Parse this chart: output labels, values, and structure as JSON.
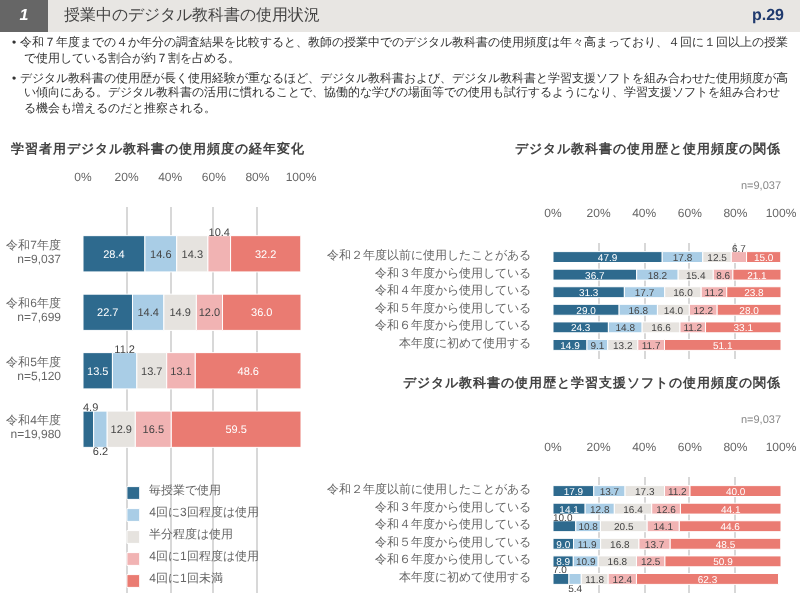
{
  "chart_data": [
    {
      "type": "other",
      "title": "授業中のデジタル教科書の使用状況",
      "annotations": [
        "1",
        "p.29",
        "• 令和７年度までの４か年分の調査結果を比較すると、教師の授業中でのデジタル教科書の使用頻度は年々高まっており、４回に１回以上の授業で使用している割合が約７割を占める。",
        "• デジタル教科書の使用歴が長く使用経験が重なるほど、デジタル教科書および、デジタル教科書と学習支援ソフトを組み合わせた使用頻度が高い傾向にある。デジタル教科書の活用に慣れることで、協働的な学びの場面等での使用も試行するようになり、学習支援ソフトを組み合わせる機会も増えるのだと推察される。"
      ]
    },
    {
      "type": "bar",
      "title": "学習者用デジタル教科書の使用頻度の経年変化",
      "orientation": "horizontal",
      "stacked": true,
      "grid": "x",
      "legend": "bottom",
      "xlim": [
        0,
        100
      ],
      "xticks": [
        {
          "value": 0,
          "label": "0%"
        },
        {
          "value": 20,
          "label": "20%"
        },
        {
          "value": 40,
          "label": "40%"
        },
        {
          "value": 60,
          "label": "60%"
        },
        {
          "value": 80,
          "label": "80%"
        },
        {
          "value": 100,
          "label": "100%"
        }
      ],
      "categories": [
        "令和7年度\nn=9,037",
        "令和6年度\nn=7,699",
        "令和5年度\nn=5,120",
        "令和4年度\nn=19,980"
      ],
      "series": [
        {
          "name": "毎授業で使用",
          "color": "#2e6a8e",
          "values": [
            28.4,
            22.7,
            13.5,
            4.9
          ],
          "value_labels": [
            "28.4",
            "22.7",
            "13.5",
            "4.9"
          ]
        },
        {
          "name": "4回に3回程度は使用",
          "color": "#a9cde6",
          "values": [
            14.6,
            14.4,
            11.2,
            6.2
          ],
          "value_labels": [
            "14.6",
            "14.4",
            "11.2",
            "6.2"
          ]
        },
        {
          "name": "半分程度は使用",
          "color": "#e6e3df",
          "values": [
            14.3,
            14.9,
            13.7,
            12.9
          ],
          "value_labels": [
            "14.3",
            "14.9",
            "13.7",
            "12.9"
          ]
        },
        {
          "name": "4回に1回程度は使用",
          "color": "#f1b3b3",
          "values": [
            10.4,
            12.0,
            13.1,
            16.5
          ],
          "value_labels": [
            "10.4",
            "12.0",
            "13.1",
            "16.5"
          ]
        },
        {
          "name": "4回に1回未満",
          "color": "#ea7b72",
          "values": [
            32.2,
            36.0,
            48.6,
            59.5
          ],
          "value_labels": [
            "32.2",
            "36.0",
            "48.6",
            "59.5"
          ]
        }
      ]
    },
    {
      "type": "bar",
      "title": "デジタル教科書の使用歴と使用頻度の関係",
      "annotations": [
        "n=9,037"
      ],
      "orientation": "horizontal",
      "stacked": true,
      "grid": "x",
      "xlim": [
        0,
        100
      ],
      "xticks": [
        {
          "value": 0,
          "label": "0%"
        },
        {
          "value": 20,
          "label": "20%"
        },
        {
          "value": 40,
          "label": "40%"
        },
        {
          "value": 60,
          "label": "60%"
        },
        {
          "value": 80,
          "label": "80%"
        },
        {
          "value": 100,
          "label": "100%"
        }
      ],
      "categories": [
        "令和２年度以前に使用したことがある",
        "令和３年度から使用している",
        "令和４年度から使用している",
        "令和５年度から使用している",
        "令和６年度から使用している",
        "本年度に初めて使用する"
      ],
      "series": [
        {
          "color": "#2e6a8e",
          "values": [
            47.9,
            36.7,
            31.3,
            29.0,
            24.3,
            14.9
          ],
          "value_labels": [
            "47.9",
            "36.7",
            "31.3",
            "29.0",
            "24.3",
            "14.9"
          ]
        },
        {
          "color": "#a9cde6",
          "values": [
            17.8,
            18.2,
            17.7,
            16.8,
            14.8,
            9.1
          ],
          "value_labels": [
            "17.8",
            "18.2",
            "17.7",
            "16.8",
            "14.8",
            "9.1"
          ]
        },
        {
          "color": "#e6e3df",
          "values": [
            12.5,
            15.4,
            16.0,
            14.0,
            16.6,
            13.2
          ],
          "value_labels": [
            "12.5",
            "15.4",
            "16.0",
            "14.0",
            "16.6",
            "13.2"
          ]
        },
        {
          "color": "#f1b3b3",
          "values": [
            6.7,
            8.6,
            11.2,
            12.2,
            11.2,
            11.7
          ],
          "value_labels": [
            "6.7",
            "8.6",
            "11.2",
            "12.2",
            "11.2",
            "11.7"
          ]
        },
        {
          "color": "#ea7b72",
          "values": [
            15.0,
            21.1,
            23.8,
            28.0,
            33.1,
            51.1
          ],
          "value_labels": [
            "15.0",
            "21.1",
            "23.8",
            "28.0",
            "33.1",
            "51.1"
          ]
        }
      ]
    },
    {
      "type": "bar",
      "title": "デジタル教科書の使用歴と学習支援ソフトの使用頻度の関係",
      "annotations": [
        "n=9,037"
      ],
      "orientation": "horizontal",
      "stacked": true,
      "grid": "x",
      "xlim": [
        0,
        100
      ],
      "xticks": [
        {
          "value": 0,
          "label": "0%"
        },
        {
          "value": 20,
          "label": "20%"
        },
        {
          "value": 40,
          "label": "40%"
        },
        {
          "value": 60,
          "label": "60%"
        },
        {
          "value": 80,
          "label": "80%"
        },
        {
          "value": 100,
          "label": "100%"
        }
      ],
      "categories": [
        "令和２年度以前に使用したことがある",
        "令和３年度から使用している",
        "令和４年度から使用している",
        "令和５年度から使用している",
        "令和６年度から使用している",
        "本年度に初めて使用する"
      ],
      "series": [
        {
          "color": "#2e6a8e",
          "values": [
            17.9,
            14.1,
            10.0,
            9.0,
            8.9,
            7.0
          ],
          "value_labels": [
            "17.9",
            "14.1",
            "10.0",
            "9.0",
            "8.9",
            "7.0"
          ]
        },
        {
          "color": "#a9cde6",
          "values": [
            13.7,
            12.8,
            10.8,
            11.9,
            10.9,
            5.4
          ],
          "value_labels": [
            "13.7",
            "12.8",
            "10.8",
            "11.9",
            "10.9",
            "5.4"
          ]
        },
        {
          "color": "#e6e3df",
          "values": [
            17.3,
            16.4,
            20.5,
            16.8,
            16.8,
            11.8
          ],
          "value_labels": [
            "17.3",
            "16.4",
            "20.5",
            "16.8",
            "16.8",
            "11.8"
          ]
        },
        {
          "color": "#f1b3b3",
          "values": [
            11.2,
            12.6,
            14.1,
            13.7,
            12.5,
            12.4
          ],
          "value_labels": [
            "11.2",
            "12.6",
            "14.1",
            "13.7",
            "12.5",
            "12.4"
          ]
        },
        {
          "color": "#ea7b72",
          "values": [
            40.0,
            44.1,
            44.6,
            48.5,
            50.9,
            62.3
          ],
          "value_labels": [
            "40.0",
            "44.1",
            "44.6",
            "48.5",
            "50.9",
            "62.3"
          ]
        }
      ]
    }
  ]
}
